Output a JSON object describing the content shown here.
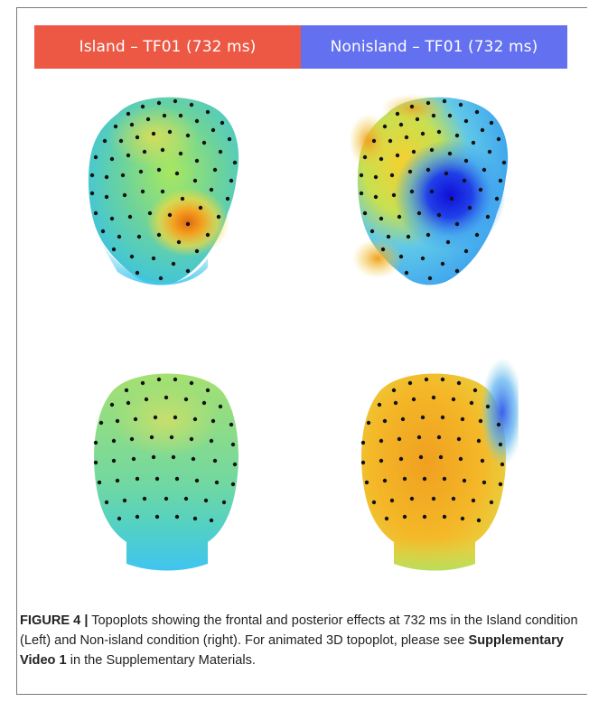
{
  "colors": {
    "island_header": "#ec5844",
    "nonisland_header": "#6370f0",
    "frame": "#7a7a7a"
  },
  "headers": {
    "island": "Island – TF01 (732 ms)",
    "nonisland": "Nonisland – TF01 (732 ms)"
  },
  "panels": [
    {
      "condition": "Island",
      "view": "frontal",
      "icon": "head-topoplot-icon"
    },
    {
      "condition": "Nonisland",
      "view": "frontal",
      "icon": "head-topoplot-icon"
    },
    {
      "condition": "Island",
      "view": "posterior",
      "icon": "head-topoplot-icon"
    },
    {
      "condition": "Nonisland",
      "view": "posterior",
      "icon": "head-topoplot-icon"
    }
  ],
  "caption": {
    "label": "FIGURE 4 |",
    "text_1": " Topoplots showing the frontal and posterior effects at 732 ms in the Island condition (Left) and Non-island condition (right). For animated 3D topoplot, please see ",
    "bold": "Supplementary Video 1",
    "text_2": " in the Supplementary Materials."
  }
}
